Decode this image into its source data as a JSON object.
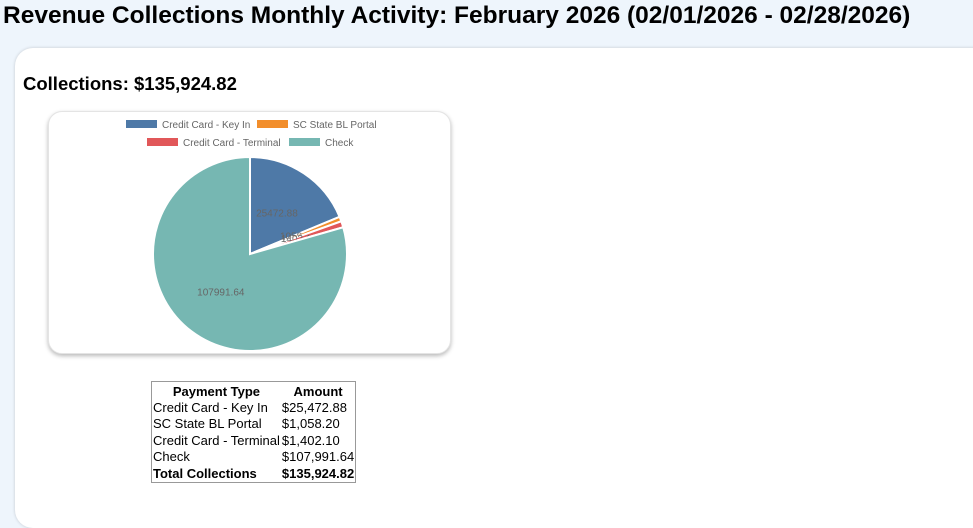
{
  "page": {
    "title": "Revenue Collections Monthly Activity: February 2026 (02/01/2026 - 02/28/2026)",
    "collections_heading": "Collections: $135,924.82"
  },
  "chart_data": {
    "type": "pie",
    "title": "",
    "legend_position": "top",
    "series": [
      {
        "name": "Credit Card - Key In",
        "value": 25472.88,
        "color": "#4e79a7",
        "label": "25472.88"
      },
      {
        "name": "SC State BL Portal",
        "value": 1058.2,
        "color": "#f28e2b",
        "label": "1058.2"
      },
      {
        "name": "Credit Card - Terminal",
        "value": 1402.1,
        "color": "#e15759",
        "label": "1402.1"
      },
      {
        "name": "Check",
        "value": 107991.64,
        "color": "#76b7b2",
        "label": "107991.64"
      }
    ]
  },
  "table": {
    "headers": [
      "Payment Type",
      "Amount"
    ],
    "rows": [
      [
        "Credit Card - Key In",
        "$25,472.88"
      ],
      [
        "SC State BL Portal",
        "$1,058.20"
      ],
      [
        "Credit Card - Terminal",
        "$1,402.10"
      ],
      [
        "Check",
        "$107,991.64"
      ]
    ],
    "total": [
      "Total Collections",
      "$135,924.82"
    ]
  }
}
